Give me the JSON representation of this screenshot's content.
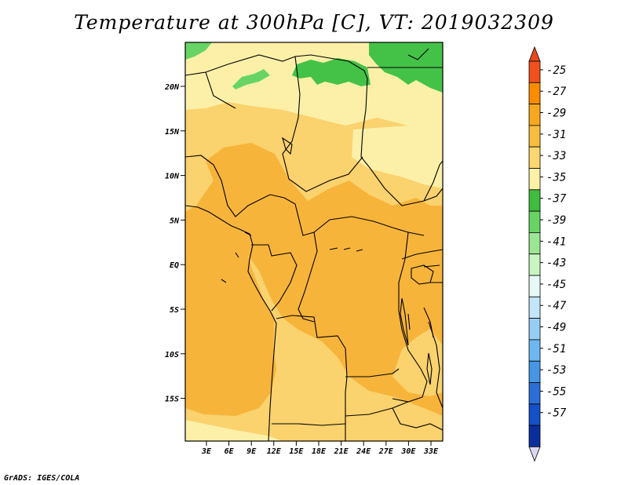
{
  "title": "Temperature at 300hPa [C], VT: 2019032309",
  "credit": "GrADS: IGES/COLA",
  "map": {
    "lat_ticks": [
      "20N",
      "15N",
      "10N",
      "5N",
      "EQ",
      "5S",
      "10S",
      "15S"
    ],
    "lon_ticks": [
      "3E",
      "6E",
      "9E",
      "12E",
      "15E",
      "18E",
      "21E",
      "24E",
      "27E",
      "30E",
      "33E"
    ]
  },
  "colorbar": {
    "labels": [
      "-25",
      "-27",
      "-29",
      "-31",
      "-33",
      "-35",
      "-37",
      "-39",
      "-41",
      "-43",
      "-45",
      "-47",
      "-49",
      "-51",
      "-53",
      "-55",
      "-57"
    ],
    "colors": [
      "#f0501e",
      "#fa8c00",
      "#f7a81e",
      "#f7bd3c",
      "#fad770",
      "#fcf1a6",
      "#3fbd3f",
      "#68d465",
      "#9be693",
      "#c8f5c0",
      "#e6f9f7",
      "#c3e5fa",
      "#96cdf5",
      "#6db8f0",
      "#4696e6",
      "#2c6ed8",
      "#1450c8",
      "#0a2e9c",
      "#0a1464",
      "#ddd9ef"
    ],
    "top_arrow_color": "#e8481e",
    "bottom_arrow_color": "#dcd8f0"
  },
  "legend_colors": {
    "lt_m29_m31": "#f7b43a",
    "m31_m33": "#fad26e",
    "m33_m35": "#fcf0a8",
    "m35_m37": "#44c248"
  }
}
